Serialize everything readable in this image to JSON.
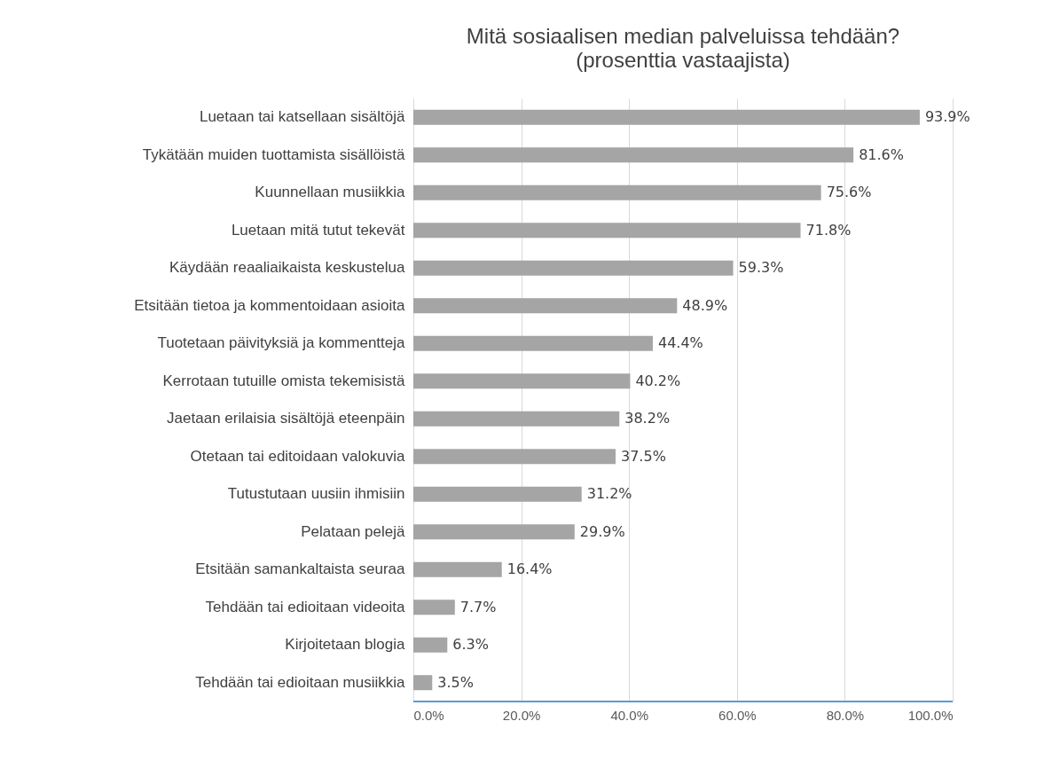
{
  "chart_data": {
    "type": "bar",
    "orientation": "horizontal",
    "title": "Mitä sosiaalisen median palveluissa tehdään?",
    "subtitle": "(prosenttia vastaajista)",
    "categories": [
      "Luetaan tai katsellaan sisältöjä",
      "Tykätään muiden tuottamista sisällöistä",
      "Kuunnellaan musiikkia",
      "Luetaan mitä tutut tekevät",
      "Käydään reaaliaikaista keskustelua",
      "Etsitään tietoa ja kommentoidaan asioita",
      "Tuotetaan päivityksiä ja kommentteja",
      "Kerrotaan tutuille omista tekemisistä",
      "Jaetaan erilaisia sisältöjä eteenpäin",
      "Otetaan tai editoidaan valokuvia",
      "Tutustutaan uusiin ihmisiin",
      "Pelataan pelejä",
      "Etsitään samankaltaista seuraa",
      "Tehdään tai edioitaan videoita",
      "Kirjoitetaan blogia",
      "Tehdään tai edioitaan musiikkia"
    ],
    "values": [
      93.9,
      81.6,
      75.6,
      71.8,
      59.3,
      48.9,
      44.4,
      40.2,
      38.2,
      37.5,
      31.2,
      29.9,
      16.4,
      7.7,
      6.3,
      3.5
    ],
    "value_labels": [
      "93.9%",
      "81.6%",
      "75.6%",
      "71.8%",
      "59.3%",
      "48.9%",
      "44.4%",
      "40.2%",
      "38.2%",
      "37.5%",
      "31.2%",
      "29.9%",
      "16.4%",
      "7.7%",
      "6.3%",
      "3.5%"
    ],
    "color": "#a5a5a5",
    "xlim": [
      0,
      100
    ],
    "xticks": [
      {
        "value": 0,
        "label": "0.0%"
      },
      {
        "value": 20,
        "label": "20.0%"
      },
      {
        "value": 40,
        "label": "40.0%"
      },
      {
        "value": 60,
        "label": "60.0%"
      },
      {
        "value": 80,
        "label": "80.0%"
      },
      {
        "value": 100,
        "label": "100.0%"
      }
    ],
    "grid": "x"
  }
}
